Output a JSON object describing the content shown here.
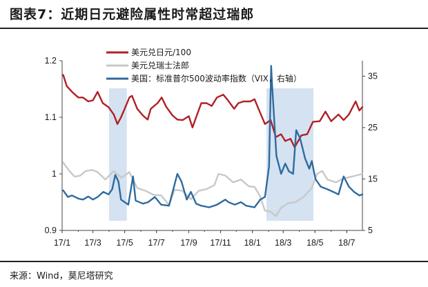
{
  "title": "图表7：近期日元避险属性时常超过瑞郎",
  "source": "来源：Wind，莫尼塔研究",
  "colors": {
    "usdjpy": "#b01f24",
    "usdchf": "#c8c8c8",
    "vix": "#2e6a9e",
    "shade": "#d4e2f1"
  },
  "chart_data": {
    "type": "line",
    "x_start": "2017-01-01",
    "x_end": "2018-07-31",
    "x_tick_labels": [
      "17/1",
      "17/3",
      "17/5",
      "17/7",
      "17/9",
      "17/11",
      "18/1",
      "18/3",
      "18/5",
      "18/7"
    ],
    "ylim_left": [
      0.9,
      1.2
    ],
    "y_left_ticks": [
      "1.2",
      "1.1",
      "1",
      "0.9"
    ],
    "ylim_right": [
      5,
      38
    ],
    "y_right_ticks": [
      "35",
      "25",
      "15",
      "5"
    ],
    "legend": [
      "美元兑日元/100",
      "美元兑瑞士法郎",
      "美国：标准普尔500波动率指数（VIX，右轴）"
    ],
    "shaded_periods": [
      [
        "2017-04-01",
        "2017-05-05"
      ],
      [
        "2018-01-28",
        "2018-04-28"
      ]
    ],
    "series": [
      {
        "name": "美元兑日元/100",
        "axis": "left",
        "points": [
          [
            "2017-01-03",
            1.175
          ],
          [
            "2017-01-10",
            1.155
          ],
          [
            "2017-01-20",
            1.145
          ],
          [
            "2017-02-01",
            1.135
          ],
          [
            "2017-02-10",
            1.135
          ],
          [
            "2017-02-20",
            1.128
          ],
          [
            "2017-03-01",
            1.13
          ],
          [
            "2017-03-10",
            1.145
          ],
          [
            "2017-03-20",
            1.125
          ],
          [
            "2017-03-31",
            1.118
          ],
          [
            "2017-04-10",
            1.105
          ],
          [
            "2017-04-17",
            1.088
          ],
          [
            "2017-04-24",
            1.1
          ],
          [
            "2017-05-01",
            1.115
          ],
          [
            "2017-05-10",
            1.135
          ],
          [
            "2017-05-15",
            1.138
          ],
          [
            "2017-05-25",
            1.115
          ],
          [
            "2017-06-05",
            1.103
          ],
          [
            "2017-06-14",
            1.096
          ],
          [
            "2017-06-20",
            1.115
          ],
          [
            "2017-07-03",
            1.125
          ],
          [
            "2017-07-11",
            1.135
          ],
          [
            "2017-07-20",
            1.118
          ],
          [
            "2017-08-01",
            1.103
          ],
          [
            "2017-08-10",
            1.096
          ],
          [
            "2017-08-20",
            1.095
          ],
          [
            "2017-09-01",
            1.102
          ],
          [
            "2017-09-08",
            1.082
          ],
          [
            "2017-09-15",
            1.1
          ],
          [
            "2017-09-25",
            1.125
          ],
          [
            "2017-10-05",
            1.125
          ],
          [
            "2017-10-15",
            1.12
          ],
          [
            "2017-10-25",
            1.135
          ],
          [
            "2017-11-06",
            1.14
          ],
          [
            "2017-11-15",
            1.13
          ],
          [
            "2017-11-27",
            1.115
          ],
          [
            "2017-12-05",
            1.125
          ],
          [
            "2017-12-15",
            1.128
          ],
          [
            "2017-12-28",
            1.128
          ],
          [
            "2018-01-05",
            1.132
          ],
          [
            "2018-01-15",
            1.11
          ],
          [
            "2018-01-25",
            1.088
          ],
          [
            "2018-02-05",
            1.095
          ],
          [
            "2018-02-15",
            1.065
          ],
          [
            "2018-02-25",
            1.07
          ],
          [
            "2018-03-05",
            1.058
          ],
          [
            "2018-03-15",
            1.062
          ],
          [
            "2018-03-23",
            1.047
          ],
          [
            "2018-04-05",
            1.068
          ],
          [
            "2018-04-16",
            1.07
          ],
          [
            "2018-04-27",
            1.092
          ],
          [
            "2018-05-10",
            1.093
          ],
          [
            "2018-05-21",
            1.11
          ],
          [
            "2018-06-01",
            1.093
          ],
          [
            "2018-06-15",
            1.105
          ],
          [
            "2018-06-25",
            1.095
          ],
          [
            "2018-07-05",
            1.105
          ],
          [
            "2018-07-18",
            1.128
          ],
          [
            "2018-07-25",
            1.112
          ],
          [
            "2018-07-31",
            1.118
          ]
        ]
      },
      {
        "name": "美元兑瑞士法郎",
        "axis": "left",
        "points": [
          [
            "2017-01-03",
            1.02
          ],
          [
            "2017-01-15",
            1.005
          ],
          [
            "2017-01-25",
            0.995
          ],
          [
            "2017-02-05",
            0.997
          ],
          [
            "2017-02-15",
            1.005
          ],
          [
            "2017-02-28",
            1.007
          ],
          [
            "2017-03-10",
            1.003
          ],
          [
            "2017-03-25",
            0.99
          ],
          [
            "2017-04-10",
            1.005
          ],
          [
            "2017-04-25",
            0.993
          ],
          [
            "2017-05-10",
            1.003
          ],
          [
            "2017-05-25",
            0.975
          ],
          [
            "2017-06-10",
            0.97
          ],
          [
            "2017-06-25",
            0.963
          ],
          [
            "2017-07-10",
            0.962
          ],
          [
            "2017-07-25",
            0.945
          ],
          [
            "2017-08-05",
            0.972
          ],
          [
            "2017-08-20",
            0.97
          ],
          [
            "2017-09-05",
            0.955
          ],
          [
            "2017-09-20",
            0.97
          ],
          [
            "2017-10-05",
            0.973
          ],
          [
            "2017-10-20",
            0.98
          ],
          [
            "2017-10-28",
            1.0
          ],
          [
            "2017-11-10",
            0.997
          ],
          [
            "2017-11-25",
            0.985
          ],
          [
            "2017-12-10",
            0.99
          ],
          [
            "2017-12-25",
            0.978
          ],
          [
            "2018-01-05",
            0.977
          ],
          [
            "2018-01-15",
            0.962
          ],
          [
            "2018-01-25",
            0.935
          ],
          [
            "2018-02-05",
            0.933
          ],
          [
            "2018-02-15",
            0.925
          ],
          [
            "2018-02-25",
            0.94
          ],
          [
            "2018-03-10",
            0.948
          ],
          [
            "2018-03-25",
            0.95
          ],
          [
            "2018-04-10",
            0.96
          ],
          [
            "2018-04-25",
            0.975
          ],
          [
            "2018-05-05",
            1.0
          ],
          [
            "2018-05-15",
            1.005
          ],
          [
            "2018-05-25",
            0.99
          ],
          [
            "2018-06-10",
            0.985
          ],
          [
            "2018-06-25",
            0.992
          ],
          [
            "2018-07-10",
            0.995
          ],
          [
            "2018-07-31",
            1.0
          ]
        ]
      },
      {
        "name": "美国：标准普尔500波动率指数（VIX，右轴）",
        "axis": "right",
        "points": [
          [
            "2017-01-03",
            12.8
          ],
          [
            "2017-01-12",
            11.5
          ],
          [
            "2017-01-20",
            11.8
          ],
          [
            "2017-02-01",
            11.2
          ],
          [
            "2017-02-10",
            11.0
          ],
          [
            "2017-02-20",
            11.6
          ],
          [
            "2017-03-01",
            11.0
          ],
          [
            "2017-03-10",
            11.5
          ],
          [
            "2017-03-21",
            12.5
          ],
          [
            "2017-03-31",
            12.0
          ],
          [
            "2017-04-07",
            13.0
          ],
          [
            "2017-04-13",
            15.8
          ],
          [
            "2017-04-19",
            14.5
          ],
          [
            "2017-04-24",
            11.0
          ],
          [
            "2017-05-01",
            10.5
          ],
          [
            "2017-05-08",
            10.0
          ],
          [
            "2017-05-17",
            15.5
          ],
          [
            "2017-05-22",
            10.8
          ],
          [
            "2017-06-05",
            10.2
          ],
          [
            "2017-06-15",
            10.5
          ],
          [
            "2017-06-28",
            11.5
          ],
          [
            "2017-07-10",
            10.0
          ],
          [
            "2017-07-25",
            9.8
          ],
          [
            "2017-08-10",
            16.0
          ],
          [
            "2017-08-18",
            14.5
          ],
          [
            "2017-08-28",
            11.0
          ],
          [
            "2017-09-05",
            12.5
          ],
          [
            "2017-09-15",
            10.2
          ],
          [
            "2017-09-25",
            9.8
          ],
          [
            "2017-10-10",
            9.5
          ],
          [
            "2017-10-25",
            10.0
          ],
          [
            "2017-11-10",
            11.0
          ],
          [
            "2017-11-16",
            10.5
          ],
          [
            "2017-11-28",
            10.0
          ],
          [
            "2017-12-10",
            10.5
          ],
          [
            "2017-12-20",
            9.8
          ],
          [
            "2018-01-05",
            9.5
          ],
          [
            "2018-01-16",
            11.0
          ],
          [
            "2018-01-25",
            11.5
          ],
          [
            "2018-02-02",
            17.5
          ],
          [
            "2018-02-06",
            37.0
          ],
          [
            "2018-02-08",
            33.0
          ],
          [
            "2018-02-16",
            19.5
          ],
          [
            "2018-02-25",
            16.0
          ],
          [
            "2018-03-05",
            18.0
          ],
          [
            "2018-03-12",
            16.5
          ],
          [
            "2018-03-20",
            16.0
          ],
          [
            "2018-03-26",
            24.5
          ],
          [
            "2018-04-02",
            23.0
          ],
          [
            "2018-04-06",
            21.5
          ],
          [
            "2018-04-12",
            19.0
          ],
          [
            "2018-04-20",
            17.0
          ],
          [
            "2018-04-25",
            18.5
          ],
          [
            "2018-05-02",
            15.0
          ],
          [
            "2018-05-12",
            13.5
          ],
          [
            "2018-05-25",
            13.0
          ],
          [
            "2018-06-05",
            12.5
          ],
          [
            "2018-06-15",
            12.0
          ],
          [
            "2018-06-25",
            15.5
          ],
          [
            "2018-07-05",
            13.5
          ],
          [
            "2018-07-15",
            12.5
          ],
          [
            "2018-07-25",
            11.8
          ],
          [
            "2018-07-31",
            12.0
          ]
        ]
      }
    ]
  }
}
